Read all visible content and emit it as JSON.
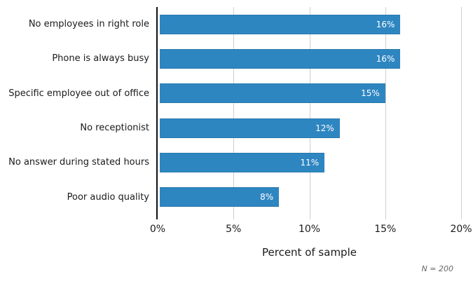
{
  "chart_data": {
    "type": "bar",
    "orientation": "horizontal",
    "categories": [
      "No employees in right role",
      "Phone is always busy",
      "Specific employee out of office",
      "No receptionist",
      "No answer during stated hours",
      "Poor audio quality"
    ],
    "values": [
      16,
      16,
      15,
      12,
      11,
      8
    ],
    "value_labels": [
      "16%",
      "16%",
      "15%",
      "12%",
      "11%",
      "8%"
    ],
    "xlabel": "Percent of sample",
    "xlim": [
      0,
      20
    ],
    "xticks": [
      0,
      5,
      10,
      15,
      20
    ],
    "xtick_labels": [
      "0%",
      "5%",
      "10%",
      "15%",
      "20%"
    ],
    "note": "N = 200",
    "title": "",
    "grid": "vertical-gridlines-on",
    "legend": "none",
    "colors": {
      "bar": "#2E86C1",
      "bar_value_text": "#ffffff",
      "gridline": "#cfcfcf",
      "axis_line": "#111111",
      "tick_mark": "#cfcfcf",
      "note_text": "#666666"
    }
  }
}
